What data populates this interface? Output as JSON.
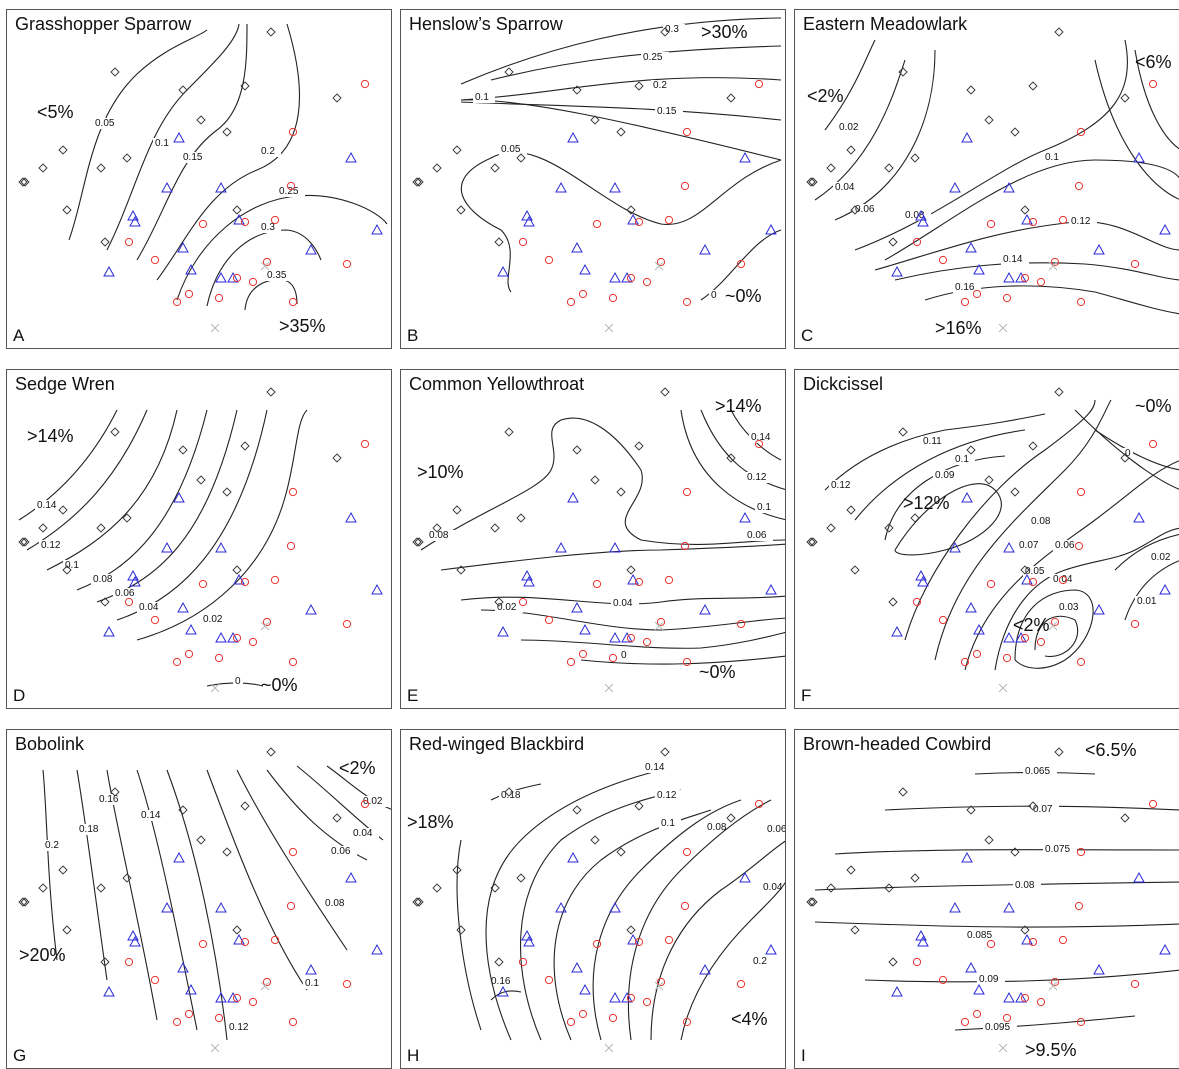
{
  "chart_data": [
    {
      "type": "contour",
      "panel": "A",
      "title": "Grasshopper Sparrow",
      "region_labels": [
        ">35%",
        "<5%"
      ],
      "contour_levels": [
        "0.05",
        "0.1",
        "0.15",
        "0.2",
        "0.25",
        "0.3",
        "0.35"
      ],
      "legend": "none"
    },
    {
      "type": "contour",
      "panel": "B",
      "title": "Henslow’s Sparrow",
      "region_labels": [
        ">30%",
        "~0%"
      ],
      "contour_levels": [
        "0.3",
        "0.25",
        "0.2",
        "0.15",
        "0.1",
        "0.05",
        "0"
      ],
      "legend": "none"
    },
    {
      "type": "contour",
      "panel": "C",
      "title": "Eastern Meadowlark",
      "region_labels": [
        "<6%",
        "<2%",
        ">16%"
      ],
      "contour_levels": [
        "0.02",
        "0.04",
        "0.06",
        "0.08",
        "0.1",
        "0.12",
        "0.14",
        "0.16"
      ],
      "legend": "none"
    },
    {
      "type": "contour",
      "panel": "D",
      "title": "Sedge Wren",
      "region_labels": [
        ">14%",
        "~0%"
      ],
      "contour_levels": [
        "0.14",
        "0.12",
        "0.1",
        "0.08",
        "0.06",
        "0.04",
        "0.02",
        "0"
      ],
      "legend": "none"
    },
    {
      "type": "contour",
      "panel": "E",
      "title": "Common Yellowthroat",
      "region_labels": [
        ">14%",
        ">10%",
        "~0%"
      ],
      "contour_levels": [
        "0.14",
        "0.12",
        "0.1",
        "0.08",
        "0.06",
        "0.04",
        "0.02",
        "0"
      ],
      "legend": "none"
    },
    {
      "type": "contour",
      "panel": "F",
      "title": "Dickcissel",
      "region_labels": [
        "~0%",
        ">12%",
        "<2%"
      ],
      "contour_levels": [
        "0.12",
        "0.11",
        "0.1",
        "0.09",
        "0.08",
        "0.07",
        "0.06",
        "0.05",
        "0.04",
        "0.03",
        "0.02",
        "0.01",
        "0"
      ],
      "legend": "none"
    },
    {
      "type": "contour",
      "panel": "G",
      "title": "Bobolink",
      "region_labels": [
        "<2%",
        ">20%"
      ],
      "contour_levels": [
        "0.2",
        "0.18",
        "0.16",
        "0.14",
        "0.12",
        "0.1",
        "0.08",
        "0.06",
        "0.04",
        "0.02"
      ],
      "legend": "none"
    },
    {
      "type": "contour",
      "panel": "H",
      "title": "Red-winged Blackbird",
      "region_labels": [
        ">18%",
        "<4%"
      ],
      "contour_levels": [
        "0.18",
        "0.16",
        "0.14",
        "0.12",
        "0.1",
        "0.08",
        "0.06",
        "0.04",
        "0.2"
      ],
      "legend": "none"
    },
    {
      "type": "contour",
      "panel": "I",
      "title": "Brown-headed Cowbird",
      "region_labels": [
        "<6.5%",
        ">9.5%"
      ],
      "contour_levels": [
        "0.065",
        "0.07",
        "0.075",
        "0.08",
        "0.085",
        "0.09",
        "0.095"
      ],
      "legend": "none"
    }
  ],
  "marker_colors": {
    "diamond": "#333333",
    "triangle": "#2a2ad6",
    "circle": "#e8312f",
    "cross": "#b8b8b8",
    "contour": "#222222"
  }
}
